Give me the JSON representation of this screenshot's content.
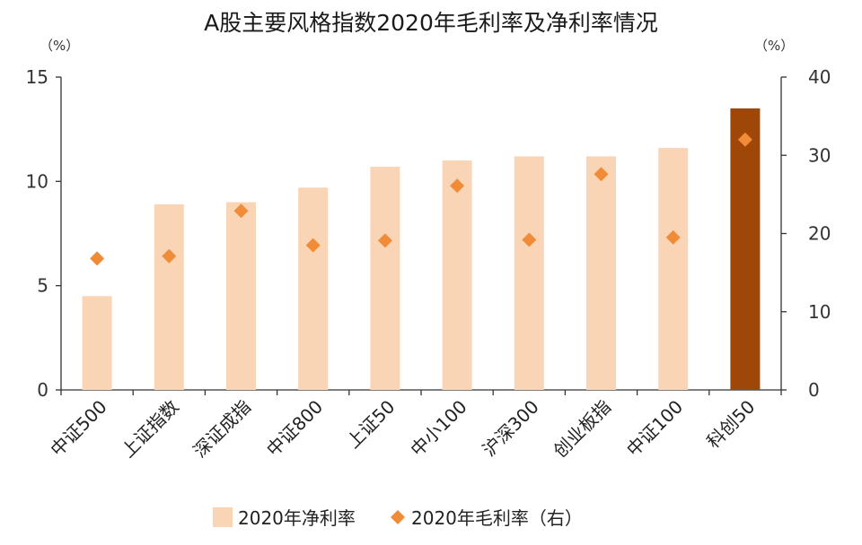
{
  "chart_data": {
    "type": "bar",
    "title": "A股主要风格指数2020年毛利率及净利率情况",
    "y_unit_left": "（%）",
    "y_unit_right": "（%）",
    "categories": [
      "中证500",
      "上证指数",
      "深证成指",
      "中证800",
      "上证50",
      "中小100",
      "沪深300",
      "创业板指",
      "中证100",
      "科创50"
    ],
    "ylim": [
      0,
      15
    ],
    "y2lim": [
      0,
      40
    ],
    "yticks": [
      0,
      5,
      10,
      15
    ],
    "y2ticks": [
      0,
      10,
      20,
      30,
      40
    ],
    "grid": false,
    "legend_position": "bottom",
    "series": [
      {
        "name": "2020年净利率",
        "type": "bar",
        "axis": "left",
        "values": [
          4.5,
          8.9,
          9.0,
          9.7,
          10.7,
          11.0,
          11.2,
          11.2,
          11.6,
          13.5
        ]
      },
      {
        "name": "2020年毛利率（右）",
        "type": "scatter",
        "marker": "diamond",
        "axis": "right",
        "values": [
          16.8,
          17.1,
          22.9,
          18.5,
          19.1,
          26.1,
          19.2,
          27.6,
          19.5,
          32.0
        ]
      }
    ],
    "colors": {
      "bar": "#f9d5b6",
      "highlight_bar": "#9e4708",
      "marker": "#f08c38",
      "axis": "#333333"
    },
    "highlight_index": 9
  }
}
